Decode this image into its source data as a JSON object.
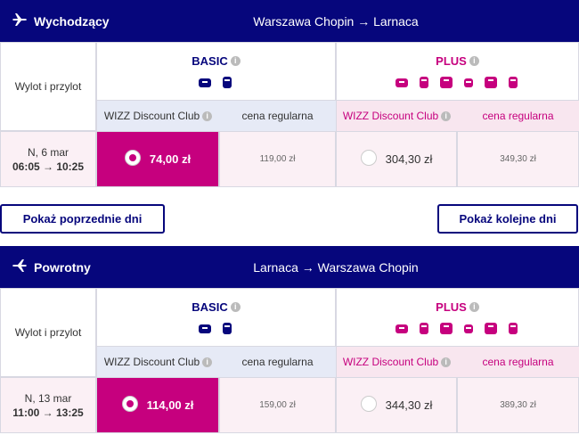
{
  "sections": [
    {
      "direction": "Wychodzący",
      "route": "Warszawa Chopin → Larnaca",
      "row_label": "Wylot i przylot",
      "fares": [
        {
          "name": "BASIC",
          "discount_label": "WIZZ Discount Club",
          "regular_label": "cena regularna",
          "discount_price": "74,00 zł",
          "regular_price": "119,00 zł"
        },
        {
          "name": "PLUS",
          "discount_label": "WIZZ Discount Club",
          "regular_label": "cena regularna",
          "discount_price": "304,30 zł",
          "regular_price": "349,30 zł"
        }
      ],
      "flight": {
        "date": "N, 6 mar",
        "times": "06:05 → 10:25"
      }
    },
    {
      "direction": "Powrotny",
      "route": "Larnaca → Warszawa Chopin",
      "row_label": "Wylot i przylot",
      "fares": [
        {
          "name": "BASIC",
          "discount_label": "WIZZ Discount Club",
          "regular_label": "cena regularna",
          "discount_price": "114,00 zł",
          "regular_price": "159,00 zł"
        },
        {
          "name": "PLUS",
          "discount_label": "WIZZ Discount Club",
          "regular_label": "cena regularna",
          "discount_price": "344,30 zł",
          "regular_price": "389,30 zł"
        }
      ],
      "flight": {
        "date": "N, 13 mar",
        "times": "11:00 → 13:25"
      }
    }
  ],
  "buttons": {
    "previous": "Pokaż poprzednie dni",
    "next": "Pokaż kolejne dni"
  }
}
